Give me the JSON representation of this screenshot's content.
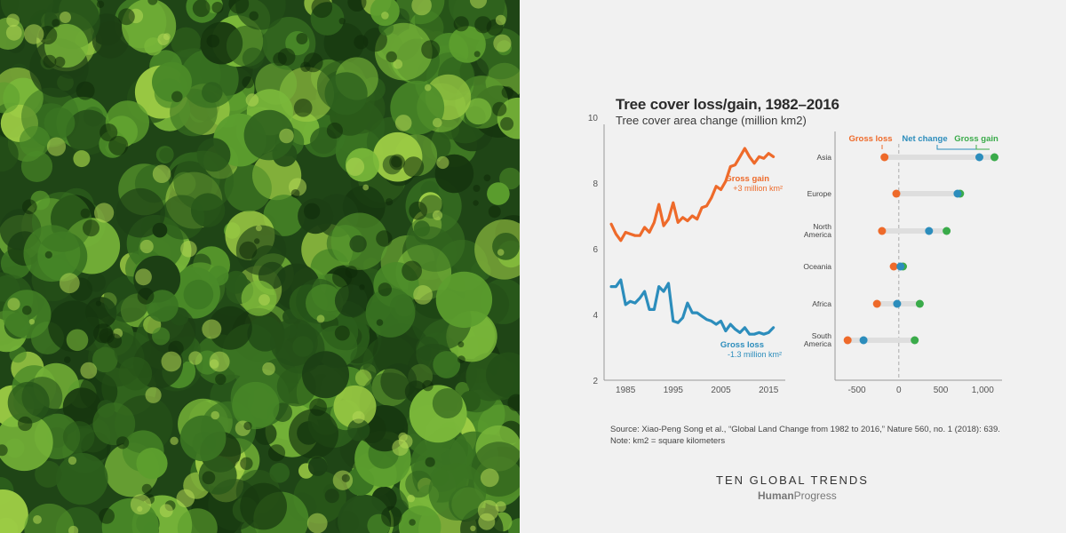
{
  "title": "Tree cover loss/gain, 1982–2016",
  "subtitle": "Tree cover area change (million km2)",
  "source_line1": "Source: Xiao-Peng Song et al., “Global Land Change from 1982 to 2016,” Nature 560, no. 1 (2018): 639.",
  "source_line2": "Note: km2 = square kilometers",
  "brand_title": "TEN GLOBAL TRENDS",
  "brand_logo_bold": "Human",
  "brand_logo_regular": "Progress",
  "colors": {
    "gain": "#ee6a2a",
    "loss": "#2c8dbc",
    "net": "#2c8dbc",
    "gross_gain_dot": "#3aab4a",
    "axis": "#999999",
    "bar": "#dedede"
  },
  "chart_data": [
    {
      "type": "line",
      "x_ticks": [
        "1985",
        "1995",
        "2005",
        "2015"
      ],
      "x_tick_values": [
        1985,
        1995,
        2005,
        2015
      ],
      "y_ticks": [
        "2",
        "4",
        "6",
        "8",
        "10"
      ],
      "y_tick_values": [
        2,
        4,
        6,
        8,
        10
      ],
      "xlim": [
        1980.5,
        2018.5
      ],
      "ylim": [
        2,
        10
      ],
      "x": [
        1982,
        1983,
        1984,
        1985,
        1986,
        1987,
        1988,
        1989,
        1990,
        1991,
        1992,
        1993,
        1994,
        1995,
        1996,
        1997,
        1998,
        1999,
        2000,
        2001,
        2002,
        2003,
        2004,
        2005,
        2006,
        2007,
        2008,
        2009,
        2010,
        2011,
        2012,
        2013,
        2014,
        2015,
        2016
      ],
      "series": [
        {
          "name": "Gross gain",
          "annotation": "+3 million km²",
          "values": [
            6.75,
            6.45,
            6.25,
            6.5,
            6.45,
            6.4,
            6.4,
            6.65,
            6.5,
            6.8,
            7.35,
            6.7,
            6.9,
            7.4,
            6.8,
            6.95,
            6.85,
            7.0,
            6.9,
            7.25,
            7.3,
            7.55,
            7.9,
            7.8,
            8.05,
            8.5,
            8.55,
            8.8,
            9.05,
            8.8,
            8.6,
            8.8,
            8.75,
            8.9,
            8.8
          ]
        },
        {
          "name": "Gross loss",
          "annotation": "-1.3 million km²",
          "values": [
            4.85,
            4.85,
            5.05,
            4.3,
            4.4,
            4.35,
            4.5,
            4.7,
            4.15,
            4.15,
            4.85,
            4.7,
            4.95,
            3.8,
            3.75,
            3.9,
            4.35,
            4.05,
            4.05,
            3.95,
            3.85,
            3.8,
            3.7,
            3.8,
            3.5,
            3.7,
            3.55,
            3.45,
            3.6,
            3.4,
            3.4,
            3.45,
            3.4,
            3.45,
            3.6
          ]
        }
      ]
    },
    {
      "type": "dot",
      "categories": [
        "Asia",
        "Europe",
        "North America",
        "Oceania",
        "Africa",
        "South America"
      ],
      "category_lines": [
        [
          "Asia"
        ],
        [
          "Europe"
        ],
        [
          "North",
          "America"
        ],
        [
          "Oceania"
        ],
        [
          "Africa"
        ],
        [
          "South",
          "America"
        ]
      ],
      "x_ticks": [
        "-500",
        "0",
        "500",
        "1,000"
      ],
      "x_tick_values": [
        -500,
        0,
        500,
        1000
      ],
      "xlim": [
        -760,
        1230
      ],
      "series": [
        {
          "name": "Gross loss",
          "values": [
            -170,
            -30,
            -200,
            -60,
            -260,
            -610
          ]
        },
        {
          "name": "Net change",
          "values": [
            960,
            700,
            360,
            20,
            -20,
            -420
          ]
        },
        {
          "name": "Gross gain",
          "values": [
            1140,
            730,
            570,
            50,
            250,
            190
          ]
        }
      ]
    }
  ]
}
